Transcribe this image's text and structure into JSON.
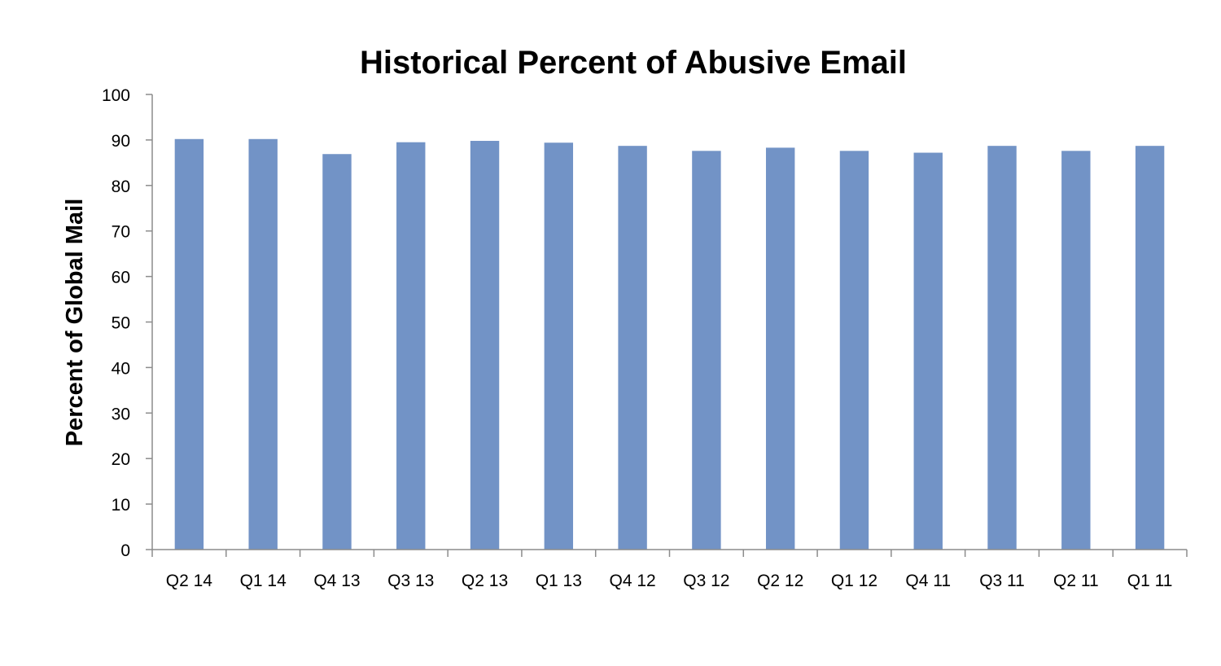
{
  "chart_data": {
    "type": "bar",
    "title": "Historical Percent of Abusive Email",
    "xlabel": "",
    "ylabel": "Percent of Global Mail",
    "categories": [
      "Q2 14",
      "Q1 14",
      "Q4 13",
      "Q3 13",
      "Q2 13",
      "Q1 13",
      "Q4 12",
      "Q3 12",
      "Q2 12",
      "Q1 12",
      "Q4 11",
      "Q3 11",
      "Q2 11",
      "Q1 11"
    ],
    "values": [
      90.2,
      90.2,
      86.9,
      89.5,
      89.8,
      89.4,
      88.7,
      87.6,
      88.3,
      87.6,
      87.2,
      88.7,
      87.6,
      88.7
    ],
    "ylim": [
      0,
      100
    ],
    "yticks": [
      0,
      10,
      20,
      30,
      40,
      50,
      60,
      70,
      80,
      90,
      100
    ],
    "grid": false,
    "legend": "none",
    "bar_color": "#7293c6"
  }
}
